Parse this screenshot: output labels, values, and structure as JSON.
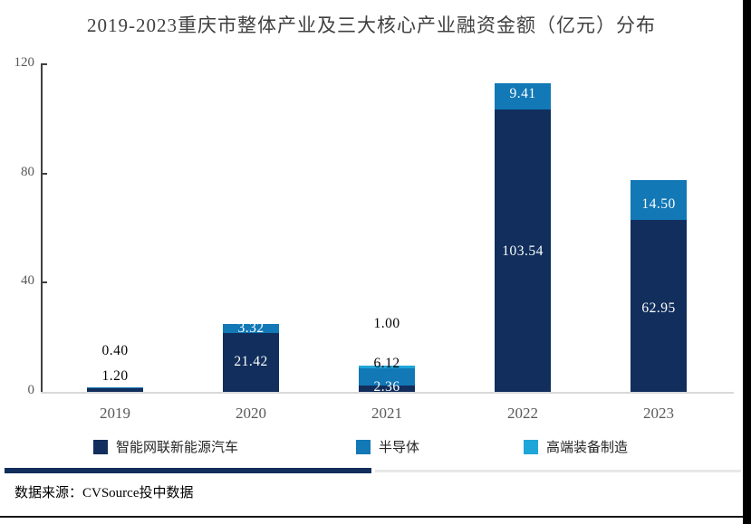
{
  "chart_data": {
    "type": "bar",
    "stacked": true,
    "title": "2019-2023重庆市整体产业及三大核心产业融资金额（亿元）分布",
    "categories": [
      "2019",
      "2020",
      "2021",
      "2022",
      "2023"
    ],
    "series": [
      {
        "name": "智能网联新能源汽车",
        "color": "#112e5c",
        "values": [
          1.2,
          21.42,
          2.36,
          103.54,
          62.95
        ]
      },
      {
        "name": "半导体",
        "color": "#1278b6",
        "values": [
          0.4,
          3.32,
          6.12,
          9.41,
          14.5
        ]
      },
      {
        "name": "高端装备制造",
        "color": "#1ea6d8",
        "values": [
          0,
          0,
          1.0,
          0,
          0
        ]
      }
    ],
    "ylim": [
      0,
      120
    ],
    "yticks": [
      0,
      40,
      80,
      120
    ],
    "xlabel": "",
    "ylabel": "",
    "grid": false,
    "legend_position": "bottom"
  },
  "footer": {
    "source": "数据来源：CVSource投中数据"
  },
  "colors": {
    "axis_line": "#404040",
    "tick_text": "#595959",
    "title_text": "#3f3f3f",
    "baseline": "#d9d9d9",
    "divider_navy": "#112e5c",
    "divider_gray": "#e8e8e8",
    "label_white": "#ffffff",
    "label_black": "#000000"
  }
}
